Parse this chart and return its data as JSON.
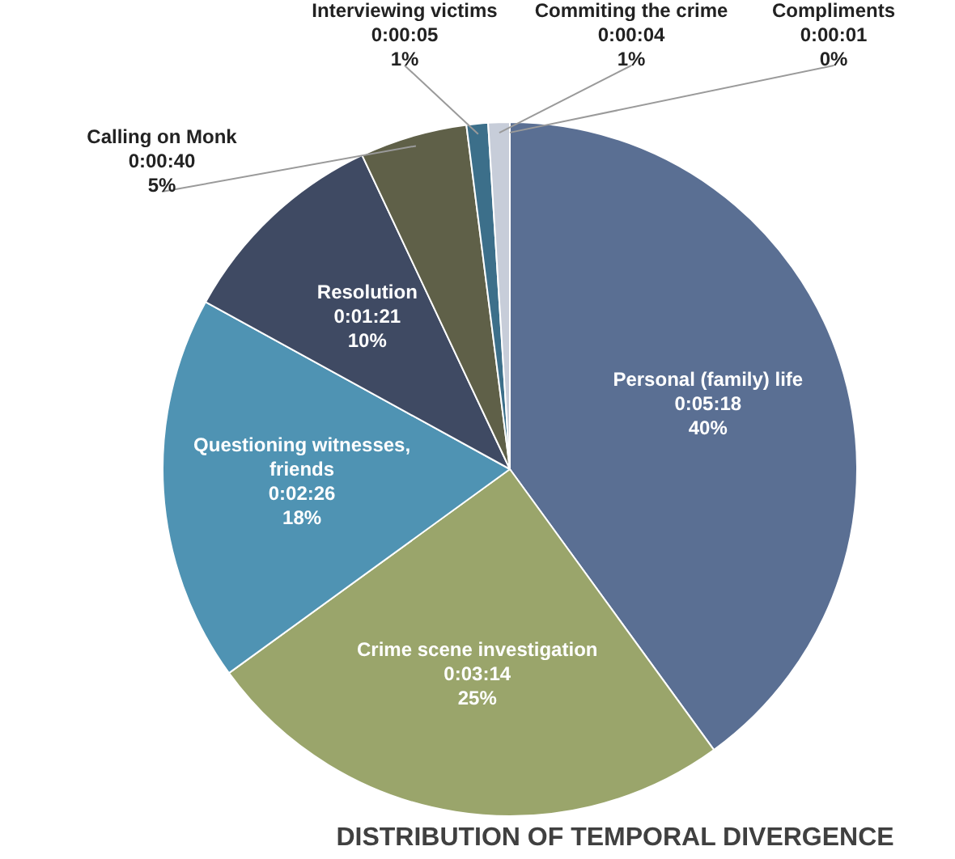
{
  "chart_data": {
    "type": "pie",
    "title": "DISTRIBUTION OF TEMPORAL DIVERGENCE",
    "categories": [
      "Personal (family) life",
      "Crime scene investigation",
      "Questioning witnesses, friends",
      "Resolution",
      "Calling on Monk",
      "Interviewing victims",
      "Commiting the crime",
      "Compliments"
    ],
    "values": [
      40,
      25,
      18,
      10,
      5,
      1,
      1,
      0
    ],
    "value_labels": [
      "0:05:18\n40%",
      "0:03:14\n25%",
      "0:02:26\n18%",
      "0:01:21\n10%",
      "0:00:40\n5%",
      "0:00:05\n1%",
      "0:00:04\n1%",
      "0:00:01\n0%"
    ],
    "colors": [
      "#5a6f93",
      "#9aa56b",
      "#4f93b3",
      "#3f4a63",
      "#5f6048",
      "#3c6f8a",
      "#c7cdd9",
      "#a9bfd4"
    ],
    "legend": false
  }
}
